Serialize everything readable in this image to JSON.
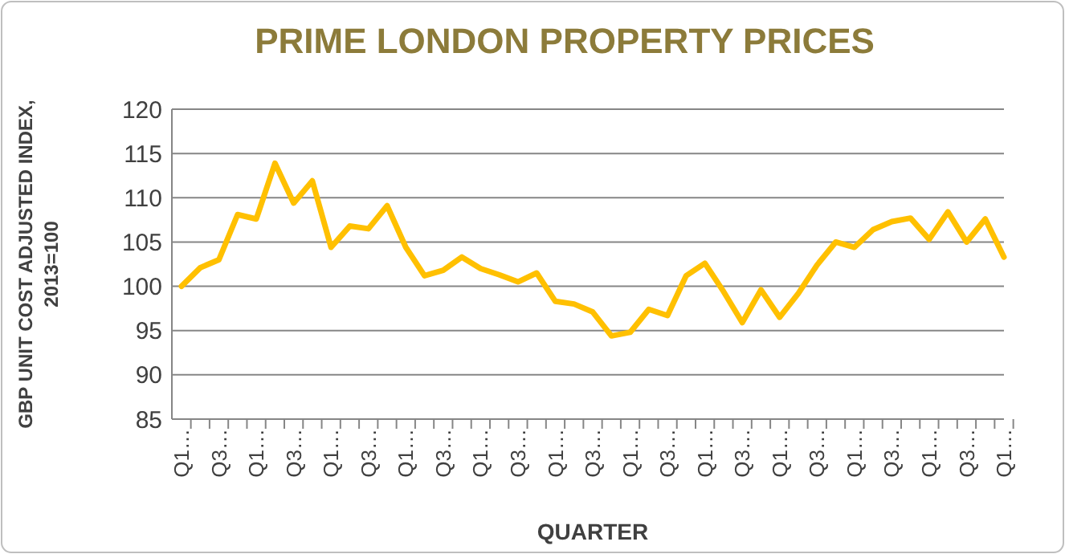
{
  "chart_data": {
    "type": "line",
    "title": "PRIME LONDON PROPERTY PRICES",
    "xlabel": "QUARTER",
    "ylabel": "GBP UNIT COST ADJUSTED INDEX, 2013=100",
    "categories": [
      "Q1…",
      null,
      "Q3…",
      null,
      "Q1…",
      null,
      "Q3…",
      null,
      "Q1…",
      null,
      "Q3…",
      null,
      "Q1…",
      null,
      "Q3…",
      null,
      "Q1…",
      null,
      "Q3…",
      null,
      "Q1…",
      null,
      "Q3…",
      null,
      "Q1…",
      null,
      "Q3…",
      null,
      "Q1…",
      null,
      "Q3…",
      null,
      "Q1…",
      null,
      "Q3…",
      null,
      "Q1…",
      null,
      "Q3…",
      null,
      "Q1…",
      null,
      "Q3…",
      null,
      "Q1…"
    ],
    "series": [
      {
        "color": "#ffc000",
        "values": [
          100,
          102.1,
          103.0,
          108.1,
          107.6,
          113.9,
          109.4,
          111.9,
          104.4,
          106.8,
          106.5,
          109.1,
          104.4,
          101.2,
          101.8,
          103.3,
          102.0,
          101.3,
          100.5,
          101.5,
          98.3,
          98.0,
          97.1,
          94.4,
          94.8,
          97.4,
          96.7,
          101.2,
          102.6,
          99.4,
          95.9,
          99.6,
          96.5,
          99.2,
          102.4,
          105.0,
          104.4,
          106.4,
          107.3,
          107.7,
          105.3,
          108.4,
          105.0,
          107.6,
          103.3
        ]
      }
    ],
    "ylim": [
      85,
      120
    ],
    "yticks": [
      85,
      90,
      95,
      100,
      105,
      110,
      115,
      120
    ],
    "grid": "y",
    "marker": "none",
    "line_style": "solid"
  }
}
